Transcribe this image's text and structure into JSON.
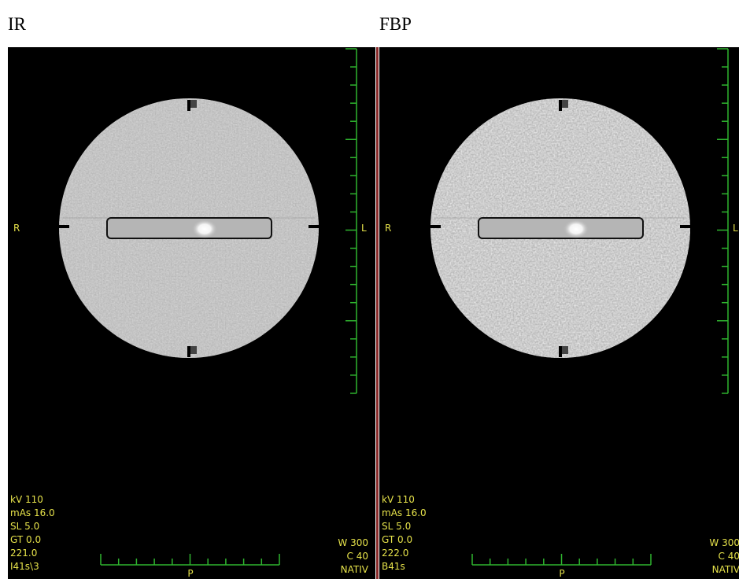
{
  "panels": [
    {
      "label": "IR",
      "left_marker": "R",
      "right_marker": "L",
      "bottom_marker": "P",
      "info_left": [
        "kV 110",
        "mAs 16.0",
        "SL 5.0",
        "GT 0.0",
        "221.0",
        "I41s\\3"
      ],
      "info_right": [
        "W 300",
        "C 40",
        "NATIV"
      ]
    },
    {
      "label": "FBP",
      "left_marker": "R",
      "right_marker": "L",
      "bottom_marker": "P",
      "info_left": [
        "kV 110",
        "mAs 16.0",
        "SL 5.0",
        "GT 0.0",
        "222.0",
        "B41s"
      ],
      "info_right": [
        "W 300",
        "C 40",
        "NATIV"
      ]
    }
  ]
}
